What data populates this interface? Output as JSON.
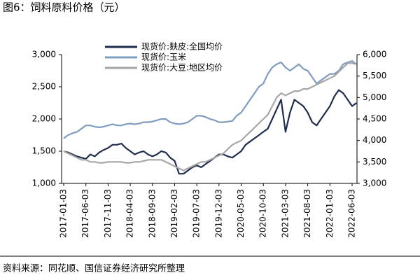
{
  "chart_data": {
    "type": "line",
    "title": "图6：饲料原料价格（元）",
    "source": "资料来源：同花顺、国信证券经济研究所整理",
    "categories": [
      "2017-01-03",
      null,
      null,
      null,
      null,
      "2017-06-03",
      null,
      null,
      null,
      null,
      "2017-11-03",
      null,
      null,
      null,
      null,
      "2018-04-03",
      null,
      null,
      null,
      null,
      "2018-09-03",
      null,
      null,
      null,
      null,
      "2019-02-03",
      null,
      null,
      null,
      null,
      "2019-07-03",
      null,
      null,
      null,
      null,
      "2019-12-03",
      null,
      null,
      null,
      null,
      "2020-05-03",
      null,
      null,
      null,
      null,
      "2020-10-03",
      null,
      null,
      null,
      null,
      "2021-03-03",
      null,
      null,
      null,
      null,
      "2021-08-03",
      null,
      null,
      null,
      null,
      "2022-01-03",
      null,
      null,
      null,
      null,
      "2022-06-03",
      null
    ],
    "series": [
      {
        "name": "现货价:麸皮:全国均价",
        "color": "#1f2d4d",
        "axis": "y",
        "values": [
          1500,
          1480,
          1450,
          1420,
          1400,
          1380,
          1450,
          1420,
          1480,
          1520,
          1550,
          1600,
          1600,
          1620,
          1550,
          1500,
          1450,
          1480,
          1500,
          1450,
          1420,
          1450,
          1500,
          1480,
          1400,
          1350,
          1150,
          1150,
          1200,
          1250,
          1280,
          1250,
          1300,
          1350,
          1400,
          1450,
          1450,
          1420,
          1400,
          1450,
          1500,
          1600,
          1650,
          1700,
          1750,
          1800,
          1850,
          2000,
          2150,
          2300,
          1800,
          2100,
          2300,
          2250,
          2200,
          2100,
          1950,
          1900,
          2000,
          2100,
          2200,
          2350,
          2450,
          2400,
          2300,
          2200,
          2250
        ]
      },
      {
        "name": "现货价:玉米",
        "color": "#7f9cc0",
        "axis": "y",
        "values": [
          1700,
          1750,
          1780,
          1800,
          1850,
          1900,
          1900,
          1880,
          1870,
          1880,
          1900,
          1920,
          1900,
          1900,
          1920,
          1930,
          1920,
          1930,
          1950,
          1950,
          1960,
          1980,
          2000,
          2000,
          1950,
          1930,
          1920,
          1930,
          1950,
          2000,
          2050,
          2050,
          2030,
          2000,
          1980,
          1950,
          1950,
          1960,
          1970,
          2050,
          2100,
          2200,
          2300,
          2400,
          2500,
          2550,
          2700,
          2800,
          2850,
          2880,
          2800,
          2750,
          2800,
          2850,
          2780,
          2750,
          2650,
          2550,
          2600,
          2650,
          2700,
          2700,
          2750,
          2850,
          2880,
          2900,
          2850
        ]
      },
      {
        "name": "现货价:大豆:地区均价",
        "color": "#a6a6a6",
        "axis": "y2",
        "values": [
          3750,
          3700,
          3650,
          3600,
          3550,
          3550,
          3500,
          3500,
          3480,
          3480,
          3500,
          3500,
          3500,
          3500,
          3480,
          3480,
          3500,
          3500,
          3520,
          3550,
          3550,
          3550,
          3550,
          3500,
          3450,
          3400,
          3350,
          3300,
          3350,
          3400,
          3450,
          3500,
          3500,
          3550,
          3600,
          3650,
          3700,
          3800,
          3900,
          3950,
          4000,
          4100,
          4200,
          4300,
          4400,
          4500,
          4600,
          4800,
          5000,
          5100,
          5050,
          5100,
          5150,
          5150,
          5200,
          5200,
          5250,
          5300,
          5350,
          5400,
          5450,
          5500,
          5600,
          5700,
          5800,
          5800,
          5780
        ]
      }
    ],
    "ylim": [
      1000,
      3000
    ],
    "yticks": [
      {
        "value": 1000,
        "label": "1,000"
      },
      {
        "value": 1500,
        "label": "1,500"
      },
      {
        "value": 2000,
        "label": "2,000"
      },
      {
        "value": 2500,
        "label": "2,500"
      },
      {
        "value": 3000,
        "label": "3,000"
      }
    ],
    "y2lim": [
      3000,
      6000
    ],
    "y2ticks": [
      {
        "value": 3000,
        "label": "3,000"
      },
      {
        "value": 3500,
        "label": "3,500"
      },
      {
        "value": 4000,
        "label": "4,000"
      },
      {
        "value": 4500,
        "label": "4,500"
      },
      {
        "value": 5000,
        "label": "5,000"
      },
      {
        "value": 5500,
        "label": "5,500"
      },
      {
        "value": 6000,
        "label": "6,000"
      }
    ],
    "grid": false,
    "legend": "top"
  }
}
